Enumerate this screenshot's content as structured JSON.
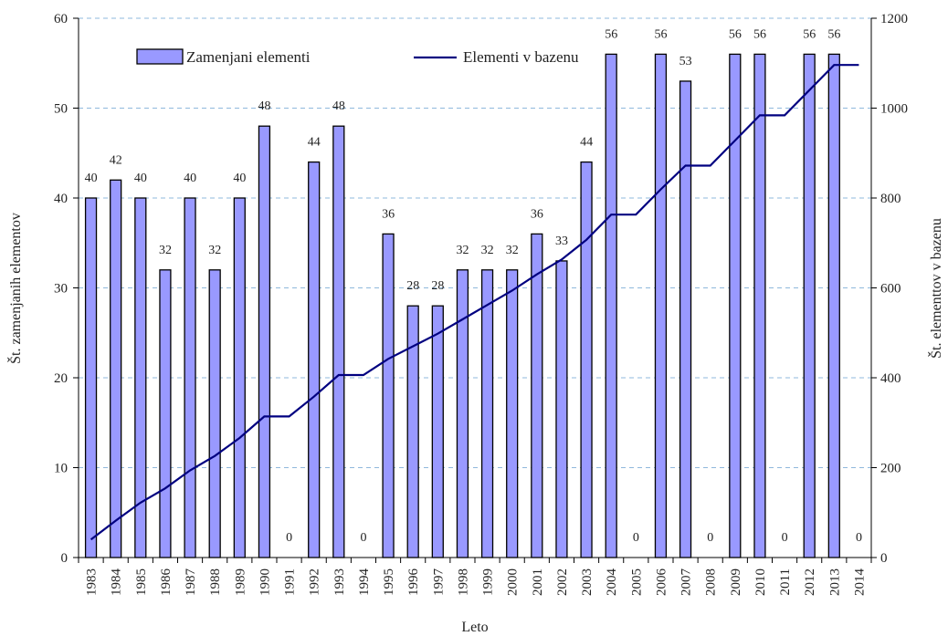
{
  "chart_data": {
    "type": "bar+line",
    "xlabel": "Leto",
    "ylabel_left": "Št. zamenjanih elementov",
    "ylabel_right": "Št. elementtov v bazenu",
    "ylim_left": [
      0,
      60
    ],
    "yticks_left": [
      0,
      10,
      20,
      30,
      40,
      50,
      60
    ],
    "ylim_right": [
      0,
      1200
    ],
    "yticks_right": [
      0,
      200,
      400,
      600,
      800,
      1000,
      1200
    ],
    "grid": "horizontal dashed",
    "legend_position": "top",
    "categories": [
      "1983",
      "1984",
      "1985",
      "1986",
      "1987",
      "1988",
      "1989",
      "1990",
      "1991",
      "1992",
      "1993",
      "1994",
      "1995",
      "1996",
      "1997",
      "1998",
      "1999",
      "2000",
      "2001",
      "2002",
      "2003",
      "2004",
      "2005",
      "2006",
      "2007",
      "2008",
      "2009",
      "2010",
      "2011",
      "2012",
      "2013",
      "2014"
    ],
    "series": [
      {
        "name": "Zamenjani elementi",
        "type": "bar",
        "axis": "left",
        "color": "#9999ff",
        "values": [
          40,
          42,
          40,
          32,
          40,
          32,
          40,
          48,
          0,
          44,
          48,
          0,
          36,
          28,
          28,
          32,
          32,
          32,
          36,
          33,
          44,
          56,
          0,
          56,
          53,
          0,
          56,
          56,
          0,
          56,
          56,
          0
        ],
        "data_labels": [
          "40",
          "42",
          "40",
          "32",
          "40",
          "32",
          "40",
          "48",
          "0",
          "44",
          "48",
          "0",
          "36",
          "28",
          "28",
          "32",
          "32",
          "32",
          "36",
          "33",
          "44",
          "56",
          "0",
          "56",
          "53",
          "0",
          "56",
          "56",
          "0",
          "56",
          "56",
          "0"
        ]
      },
      {
        "name": "Elementi v bazenu",
        "type": "line",
        "axis": "right",
        "color": "#000080",
        "values": [
          40,
          82,
          122,
          154,
          194,
          226,
          266,
          314,
          314,
          358,
          406,
          406,
          442,
          470,
          498,
          530,
          562,
          594,
          630,
          663,
          707,
          763,
          763,
          819,
          872,
          872,
          928,
          984,
          984,
          1040,
          1096,
          1096
        ]
      }
    ]
  }
}
